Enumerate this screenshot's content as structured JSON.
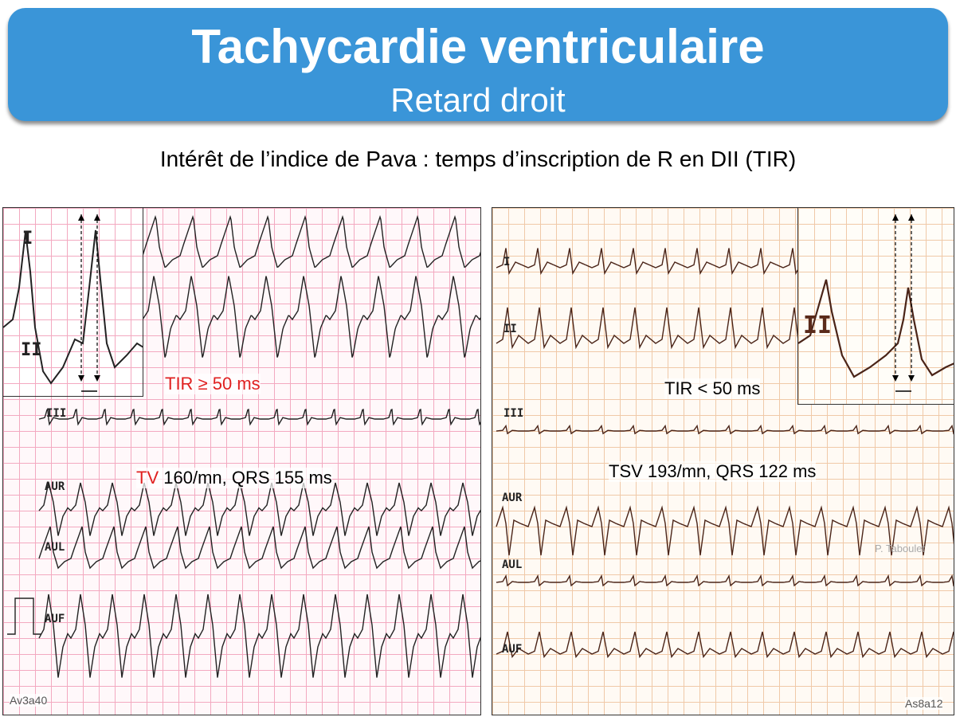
{
  "header": {
    "title": "Tachycardie ventriculaire",
    "subtitle": "Retard droit"
  },
  "heading": "Intérêt de l’indice de Pava : temps d’inscription de R en DII (TIR)",
  "left": {
    "inset_leads": [
      "I",
      "II"
    ],
    "leads": [
      "III",
      "AUR",
      "AUL",
      "AUF"
    ],
    "tir": "TIR ≥ 50 ms",
    "rhythm": "TV",
    "detail": "160/mn, QRS 155 ms",
    "code": "Av3a40"
  },
  "right": {
    "inset_leads": [
      "II"
    ],
    "leads": [
      "I",
      "II",
      "III",
      "AUR",
      "AUL",
      "AUF"
    ],
    "tir": "TIR < 50 ms",
    "rhythm": "TSV 193/mn, QRS 122 ms",
    "credit": "P. Taboulet",
    "code": "As8a12"
  }
}
